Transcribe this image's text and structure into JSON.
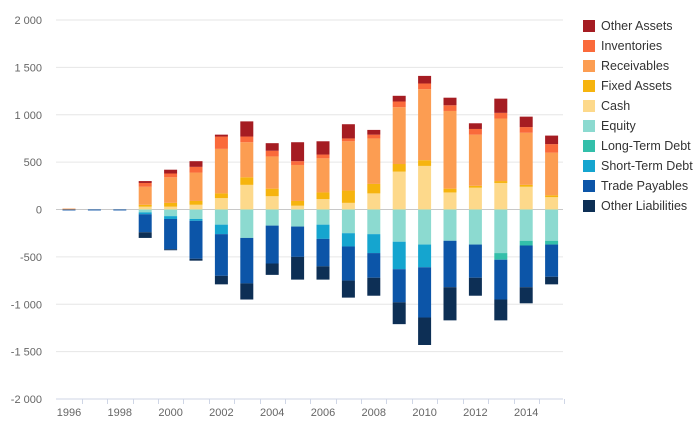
{
  "chart_data": {
    "type": "bar",
    "stacked": true,
    "x": [
      1996,
      1997,
      1998,
      1999,
      2000,
      2001,
      2002,
      2003,
      2004,
      2005,
      2006,
      2007,
      2008,
      2009,
      2010,
      2011,
      2012,
      2013,
      2014,
      2015
    ],
    "x_tick_labels": [
      "1996",
      "1998",
      "2000",
      "2002",
      "2004",
      "2006",
      "2008",
      "2010",
      "2012",
      "2014"
    ],
    "y_tick_labels": [
      "2 000",
      "1 500",
      "1 000",
      "500",
      "0",
      "-500",
      "-1 000",
      "-1 500",
      "-2 000"
    ],
    "ylim": [
      -2000,
      2000
    ],
    "legend_position": "right",
    "assets": [
      {
        "name": "Cash",
        "color": "#fdd98b",
        "values": [
          0,
          0,
          0,
          30,
          30,
          50,
          120,
          260,
          140,
          40,
          110,
          70,
          170,
          400,
          460,
          180,
          230,
          280,
          240,
          130
        ]
      },
      {
        "name": "Fixed Assets",
        "color": "#f6b40e",
        "values": [
          0,
          0,
          0,
          20,
          40,
          40,
          50,
          80,
          80,
          50,
          70,
          130,
          100,
          80,
          60,
          40,
          20,
          20,
          20,
          20
        ]
      },
      {
        "name": "Receivables",
        "color": "#fc9d52",
        "values": [
          10,
          0,
          0,
          190,
          270,
          300,
          470,
          370,
          340,
          380,
          360,
          520,
          480,
          600,
          750,
          820,
          540,
          660,
          550,
          450
        ]
      },
      {
        "name": "Inventories",
        "color": "#fa6a3b",
        "values": [
          0,
          0,
          0,
          40,
          40,
          60,
          130,
          60,
          60,
          40,
          40,
          30,
          40,
          60,
          60,
          60,
          60,
          60,
          60,
          90
        ]
      },
      {
        "name": "Other Assets",
        "color": "#a51c22",
        "values": [
          0,
          0,
          0,
          20,
          40,
          60,
          20,
          160,
          80,
          200,
          140,
          150,
          50,
          60,
          80,
          80,
          60,
          150,
          110,
          90
        ]
      }
    ],
    "liabilities": [
      {
        "name": "Equity",
        "color": "#8cdad0",
        "values": [
          0,
          0,
          0,
          -30,
          -70,
          -100,
          -160,
          -300,
          -170,
          -180,
          -160,
          -250,
          -260,
          -340,
          -370,
          -330,
          -370,
          -460,
          -330,
          -330
        ]
      },
      {
        "name": "Long-Term Debt",
        "color": "#33bfaa",
        "values": [
          0,
          0,
          0,
          0,
          0,
          0,
          0,
          0,
          0,
          0,
          0,
          0,
          0,
          0,
          0,
          0,
          0,
          -70,
          -50,
          -40
        ]
      },
      {
        "name": "Short-Term Debt",
        "color": "#15a5cf",
        "values": [
          0,
          0,
          0,
          -20,
          -30,
          -20,
          -100,
          0,
          0,
          0,
          -150,
          -140,
          -200,
          -290,
          -240,
          0,
          0,
          0,
          0,
          0
        ]
      },
      {
        "name": "Trade Payables",
        "color": "#0c55a8",
        "values": [
          -10,
          -10,
          -10,
          -190,
          -320,
          -400,
          -440,
          -480,
          -400,
          -320,
          -290,
          -360,
          -260,
          -350,
          -530,
          -490,
          -350,
          -420,
          -440,
          -340
        ]
      },
      {
        "name": "Other Liabilities",
        "color": "#0d2f55",
        "values": [
          0,
          0,
          0,
          -60,
          -10,
          -20,
          -90,
          -170,
          -120,
          -240,
          -140,
          -180,
          -190,
          -230,
          -290,
          -350,
          -190,
          -220,
          -170,
          -80
        ]
      }
    ],
    "legend_order": [
      "Other Assets",
      "Inventories",
      "Receivables",
      "Fixed Assets",
      "Cash",
      "Equity",
      "Long-Term Debt",
      "Short-Term Debt",
      "Trade Payables",
      "Other Liabilities"
    ]
  }
}
